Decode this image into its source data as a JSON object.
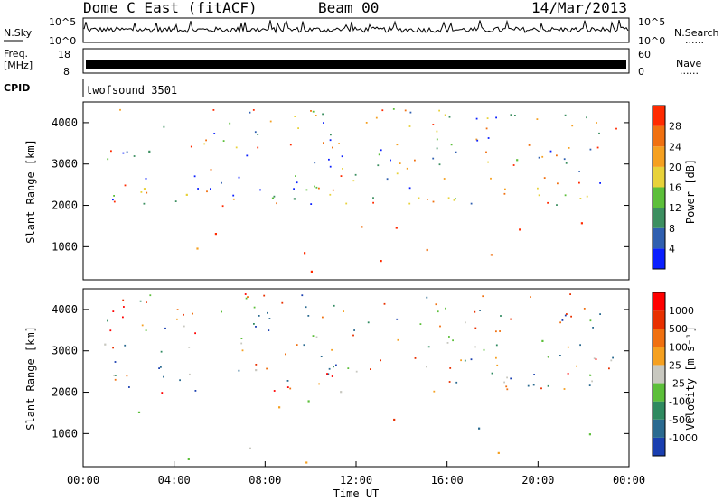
{
  "header": {
    "station": "Dome C East (fitACF)",
    "beam": "Beam 00",
    "date": "14/Mar/2013"
  },
  "status_panels": {
    "nsky_label": "N.Sky",
    "nsearch_label": "N.Search",
    "freq_label": "Freq.",
    "freq_unit": "[MHz]",
    "nave_label": "Nave",
    "cpid_label": "CPID",
    "cpid_text": "twofsound 3501",
    "noise_ticks_left": [
      "10^5",
      "10^0"
    ],
    "noise_ticks_right": [
      "10^5",
      "10^0"
    ],
    "freq_ticks": [
      "18",
      "8"
    ],
    "nave_ticks": [
      "60",
      "0"
    ],
    "dotted_legend": "......"
  },
  "chart_data": [
    {
      "type": "heatmap",
      "panel": "power",
      "ylabel": "Slant Range [km]",
      "ylim": [
        200,
        4500
      ],
      "yticks": [
        "1000",
        "2000",
        "3000",
        "4000"
      ],
      "xlim_hours": [
        0,
        24
      ],
      "colorbar_label": "Power [dB]",
      "colorbar_ticks": [
        "28",
        "24",
        "20",
        "16",
        "12",
        "8",
        "4"
      ],
      "colors": [
        "#0a1fff",
        "#2f5fb0",
        "#3c8f60",
        "#5cbf3a",
        "#e8d23a",
        "#f5a020",
        "#f07010",
        "#ff2a00"
      ],
      "regions": [
        {
          "t0": 0.8,
          "t1": 13.5,
          "r0": 300,
          "r1": 900,
          "level": 7
        },
        {
          "t0": 0.8,
          "t1": 13.5,
          "r0": 1100,
          "r1": 1650,
          "level": 6
        },
        {
          "t0": 13.0,
          "t1": 17.5,
          "r0": 400,
          "r1": 1500,
          "level": 7
        },
        {
          "t0": 17.5,
          "t1": 24.0,
          "r0": 500,
          "r1": 1700,
          "level": 6
        },
        {
          "t0": 2.0,
          "t1": 14.0,
          "r0": 1800,
          "r1": 2700,
          "level": 3
        },
        {
          "t0": 18.5,
          "t1": 23.5,
          "r0": 2800,
          "r1": 3300,
          "level": 2
        },
        {
          "t0": 0.8,
          "t1": 3.5,
          "r0": 2700,
          "r1": 3500,
          "level": 2
        },
        {
          "t0": 0.8,
          "t1": 13.0,
          "r0": 900,
          "r1": 1100,
          "level": 5
        }
      ]
    },
    {
      "type": "heatmap",
      "panel": "velocity",
      "ylabel": "Slant Range [km]",
      "xlabel": "Time UT",
      "ylim": [
        200,
        4500
      ],
      "yticks": [
        "1000",
        "2000",
        "3000",
        "4000"
      ],
      "xticks": [
        "00:00",
        "04:00",
        "08:00",
        "12:00",
        "16:00",
        "20:00",
        "00:00"
      ],
      "xlim_hours": [
        0,
        24
      ],
      "colorbar_label": "Velocity [m s⁻¹]",
      "colorbar_ticks": [
        "1000",
        "500",
        "100",
        "25",
        "-25",
        "-100",
        "-500",
        "-1000"
      ],
      "colors": [
        "#1a3fb0",
        "#2a6a90",
        "#2f8a60",
        "#5cbf3a",
        "#c8c8c0",
        "#f5a020",
        "#f07010",
        "#e83000",
        "#ff0000"
      ],
      "regions": [
        {
          "t0": 0.8,
          "t1": 8.0,
          "r0": 300,
          "r1": 1000,
          "level": 3
        },
        {
          "t0": 8.0,
          "t1": 13.0,
          "r0": 300,
          "r1": 1100,
          "level": 5
        },
        {
          "t0": 13.0,
          "t1": 15.5,
          "r0": 400,
          "r1": 1400,
          "level": 6
        },
        {
          "t0": 15.5,
          "t1": 18.0,
          "r0": 500,
          "r1": 1700,
          "level": 2
        },
        {
          "t0": 18.0,
          "t1": 22.0,
          "r0": 500,
          "r1": 1300,
          "level": 6
        },
        {
          "t0": 22.0,
          "t1": 24.0,
          "r0": 500,
          "r1": 1700,
          "level": 2
        },
        {
          "t0": 0.8,
          "t1": 13.5,
          "r0": 1200,
          "r1": 1700,
          "level": 4
        },
        {
          "t0": 3.0,
          "t1": 14.0,
          "r0": 1800,
          "r1": 2600,
          "level": 4
        },
        {
          "t0": 0.8,
          "t1": 3.5,
          "r0": 2800,
          "r1": 3500,
          "level": 4
        },
        {
          "t0": 19.0,
          "t1": 23.0,
          "r0": 2800,
          "r1": 3300,
          "level": 4
        }
      ]
    }
  ]
}
